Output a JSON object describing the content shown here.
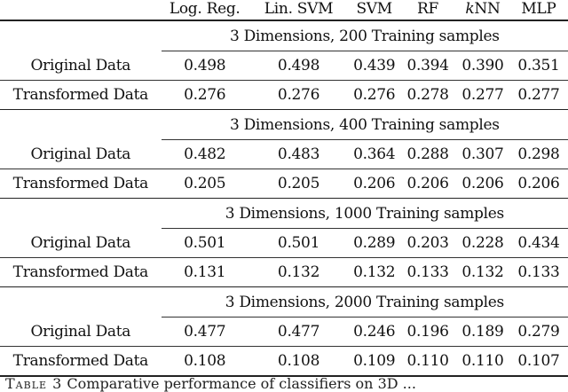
{
  "table": {
    "headers": {
      "label": "",
      "log_reg": "Log. Reg.",
      "lin_svm": "Lin. SVM",
      "svm": "SVM",
      "rf": "RF",
      "knn_k": "k",
      "knn_rest": "NN",
      "mlp": "MLP"
    },
    "sections": [
      {
        "title": "3 Dimensions, 200 Training samples",
        "original": {
          "label": "Original Data",
          "values": [
            "0.498",
            "0.498",
            "0.439",
            "0.394",
            "0.390",
            "0.351"
          ]
        },
        "transformed": {
          "label": "Transformed Data",
          "values": [
            "0.276",
            "0.276",
            "0.276",
            "0.278",
            "0.277",
            "0.277"
          ]
        }
      },
      {
        "title": "3 Dimensions, 400 Training samples",
        "original": {
          "label": "Original Data",
          "values": [
            "0.482",
            "0.483",
            "0.364",
            "0.288",
            "0.307",
            "0.298"
          ]
        },
        "transformed": {
          "label": "Transformed Data",
          "values": [
            "0.205",
            "0.205",
            "0.206",
            "0.206",
            "0.206",
            "0.206"
          ]
        }
      },
      {
        "title": "3 Dimensions, 1000 Training samples",
        "original": {
          "label": "Original Data",
          "values": [
            "0.501",
            "0.501",
            "0.289",
            "0.203",
            "0.228",
            "0.434"
          ]
        },
        "transformed": {
          "label": "Transformed Data",
          "values": [
            "0.131",
            "0.132",
            "0.132",
            "0.133",
            "0.132",
            "0.133"
          ]
        }
      },
      {
        "title": "3 Dimensions, 2000 Training samples",
        "original": {
          "label": "Original Data",
          "values": [
            "0.477",
            "0.477",
            "0.246",
            "0.196",
            "0.189",
            "0.279"
          ]
        },
        "transformed": {
          "label": "Transformed Data",
          "values": [
            "0.108",
            "0.108",
            "0.109",
            "0.110",
            "0.110",
            "0.107"
          ]
        }
      }
    ]
  },
  "caption": {
    "table_no": "Table 3",
    "text": "Comparative performance of classifiers on 3D ..."
  }
}
